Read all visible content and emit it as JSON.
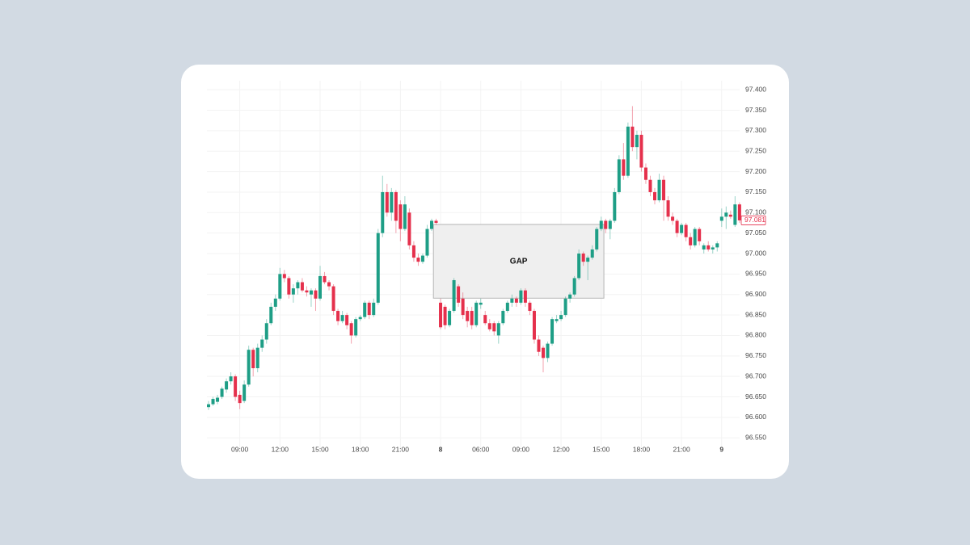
{
  "chart_data": {
    "type": "candlestick",
    "categories": [
      null,
      null,
      null,
      null,
      null,
      null,
      null,
      "09:00",
      null,
      null,
      null,
      null,
      null,
      null,
      null,
      null,
      "12:00",
      null,
      null,
      null,
      null,
      null,
      null,
      null,
      null,
      "15:00",
      null,
      null,
      null,
      null,
      null,
      null,
      null,
      null,
      "18:00",
      null,
      null,
      null,
      null,
      null,
      null,
      null,
      null,
      "21:00",
      null,
      null,
      null,
      null,
      null,
      null,
      null,
      null,
      "8",
      null,
      null,
      null,
      null,
      null,
      null,
      null,
      null,
      "06:00",
      null,
      null,
      null,
      null,
      null,
      null,
      null,
      null,
      "09:00",
      null,
      null,
      null,
      null,
      null,
      null,
      null,
      null,
      "12:00",
      null,
      null,
      null,
      null,
      null,
      null,
      null,
      null,
      "15:00",
      null,
      null,
      null,
      null,
      null,
      null,
      null,
      null,
      "18:00",
      null,
      null,
      null,
      null,
      null,
      null,
      null,
      null,
      "21:00",
      null,
      null,
      null,
      null,
      null,
      null,
      null,
      null,
      "9",
      null,
      null,
      null,
      null
    ],
    "open": [
      96.625,
      96.632,
      96.638,
      96.65,
      96.668,
      96.688,
      96.7,
      96.655,
      96.64,
      96.68,
      96.765,
      96.72,
      96.77,
      96.79,
      96.83,
      96.87,
      96.89,
      96.95,
      96.94,
      96.9,
      96.915,
      96.93,
      96.91,
      96.9,
      96.91,
      96.89,
      96.945,
      96.93,
      96.92,
      96.86,
      96.835,
      96.85,
      96.83,
      96.8,
      96.84,
      96.845,
      96.88,
      96.85,
      96.88,
      97.05,
      97.15,
      97.1,
      97.15,
      97.12,
      97.06,
      97.1,
      97.02,
      96.99,
      96.98,
      96.995,
      97.06,
      97.08,
      96.88,
      96.87,
      96.825,
      96.86,
      96.92,
      96.89,
      96.86,
      96.86,
      96.825,
      96.875,
      96.85,
      96.83,
      96.83,
      96.8,
      96.83,
      96.86,
      96.88,
      96.89,
      96.88,
      96.91,
      96.88,
      96.86,
      96.79,
      96.77,
      96.745,
      96.78,
      96.835,
      96.84,
      96.85,
      96.89,
      96.9,
      96.94,
      97.0,
      96.98,
      96.99,
      97.01,
      97.06,
      97.08,
      97.06,
      97.08,
      97.15,
      97.23,
      97.19,
      97.31,
      97.26,
      97.29,
      97.21,
      97.18,
      97.15,
      97.13,
      97.18,
      97.13,
      97.09,
      97.08,
      97.05,
      97.07,
      97.04,
      97.02,
      97.06,
      97.01,
      97.02,
      97.01,
      97.015,
      97.08,
      97.09,
      97.095,
      97.07,
      97.12
    ],
    "high": [
      96.64,
      96.65,
      96.655,
      96.675,
      96.695,
      96.71,
      96.705,
      96.665,
      96.69,
      96.775,
      96.77,
      96.78,
      96.8,
      96.84,
      96.88,
      96.9,
      96.965,
      96.96,
      96.945,
      96.925,
      96.935,
      96.94,
      96.92,
      96.915,
      96.915,
      96.97,
      96.955,
      96.935,
      96.925,
      96.865,
      96.86,
      96.855,
      96.835,
      96.845,
      96.85,
      96.885,
      96.885,
      96.89,
      97.06,
      97.19,
      97.17,
      97.16,
      97.155,
      97.13,
      97.14,
      97.11,
      97.03,
      97.0,
      97.0,
      97.07,
      97.085,
      97.085,
      96.89,
      96.875,
      96.865,
      96.94,
      96.925,
      96.905,
      96.87,
      96.87,
      96.885,
      96.89,
      96.86,
      96.84,
      96.835,
      96.835,
      96.865,
      96.885,
      96.9,
      96.895,
      96.915,
      96.915,
      96.885,
      96.865,
      96.8,
      96.775,
      96.785,
      96.845,
      96.85,
      96.86,
      96.895,
      96.905,
      96.945,
      97.01,
      97.005,
      96.995,
      97.02,
      97.065,
      97.09,
      97.085,
      97.085,
      97.16,
      97.24,
      97.27,
      97.32,
      97.36,
      97.3,
      97.3,
      97.22,
      97.19,
      97.16,
      97.195,
      97.19,
      97.14,
      97.1,
      97.085,
      97.075,
      97.075,
      97.05,
      97.065,
      97.065,
      97.025,
      97.03,
      97.02,
      97.03,
      97.11,
      97.115,
      97.105,
      97.14,
      97.125
    ],
    "low": [
      96.618,
      96.628,
      96.632,
      96.645,
      96.66,
      96.68,
      96.64,
      96.62,
      96.635,
      96.675,
      96.7,
      96.71,
      96.76,
      96.78,
      96.825,
      96.86,
      96.885,
      96.93,
      96.89,
      96.88,
      96.9,
      96.905,
      96.895,
      96.87,
      96.86,
      96.885,
      96.925,
      96.91,
      96.85,
      96.825,
      96.83,
      96.815,
      96.78,
      96.795,
      96.835,
      96.84,
      96.84,
      96.845,
      96.875,
      97.04,
      97.09,
      97.08,
      97.05,
      97.03,
      97.055,
      97.01,
      96.98,
      96.97,
      96.975,
      96.99,
      97.055,
      97.07,
      96.815,
      96.815,
      96.82,
      96.855,
      96.87,
      96.84,
      96.82,
      96.815,
      96.82,
      96.865,
      96.825,
      96.81,
      96.8,
      96.78,
      96.825,
      96.855,
      96.87,
      96.87,
      96.875,
      96.87,
      96.85,
      96.78,
      96.75,
      96.71,
      96.735,
      96.775,
      96.83,
      96.835,
      96.845,
      96.88,
      96.895,
      96.935,
      96.97,
      96.935,
      96.985,
      97.005,
      97.055,
      97.05,
      97.035,
      97.075,
      97.145,
      97.18,
      97.185,
      97.25,
      97.23,
      97.2,
      97.17,
      97.14,
      97.12,
      97.125,
      97.08,
      97.08,
      97.07,
      97.04,
      97.045,
      97.03,
      97.01,
      97.015,
      97.02,
      97.0,
      97.005,
      97.0,
      97.005,
      97.065,
      97.06,
      97.085,
      97.065,
      97.075
    ],
    "close": [
      96.632,
      96.645,
      96.648,
      96.67,
      96.688,
      96.7,
      96.65,
      96.635,
      96.68,
      96.765,
      96.72,
      96.77,
      96.79,
      96.83,
      96.87,
      96.89,
      96.95,
      96.94,
      96.9,
      96.915,
      96.93,
      96.91,
      96.905,
      96.91,
      96.89,
      96.945,
      96.93,
      96.92,
      96.86,
      96.835,
      96.85,
      96.825,
      96.8,
      96.84,
      96.845,
      96.88,
      96.85,
      96.88,
      97.05,
      97.15,
      97.1,
      97.15,
      97.08,
      97.06,
      97.12,
      97.02,
      96.99,
      96.98,
      96.995,
      97.06,
      97.08,
      97.075,
      96.82,
      96.825,
      96.86,
      96.935,
      96.88,
      96.85,
      96.835,
      96.825,
      96.88,
      96.88,
      96.83,
      96.815,
      96.81,
      96.83,
      96.86,
      96.88,
      96.89,
      96.88,
      96.91,
      96.88,
      96.86,
      96.79,
      96.76,
      96.745,
      96.78,
      96.84,
      96.84,
      96.85,
      96.89,
      96.9,
      96.94,
      97.0,
      96.98,
      96.99,
      97.01,
      97.06,
      97.08,
      97.06,
      97.08,
      97.15,
      97.23,
      97.19,
      97.31,
      97.26,
      97.29,
      97.21,
      97.18,
      97.15,
      97.13,
      97.18,
      97.13,
      97.09,
      97.08,
      97.05,
      97.07,
      97.04,
      97.02,
      97.06,
      97.03,
      97.02,
      97.01,
      97.015,
      97.025,
      97.09,
      97.1,
      97.09,
      97.12,
      97.081
    ],
    "up_color": "#1e9e86",
    "down_color": "#e5304c",
    "ylim": [
      96.515,
      97.422
    ],
    "yticks": [
      {
        "value": 96.55,
        "label": "96.550"
      },
      {
        "value": 96.6,
        "label": "96.600"
      },
      {
        "value": 96.65,
        "label": "96.650"
      },
      {
        "value": 96.7,
        "label": "96.700"
      },
      {
        "value": 96.75,
        "label": "96.750"
      },
      {
        "value": 96.8,
        "label": "96.800"
      },
      {
        "value": 96.85,
        "label": "96.850"
      },
      {
        "value": 96.9,
        "label": "96.900"
      },
      {
        "value": 96.95,
        "label": "96.950"
      },
      {
        "value": 97,
        "label": "97.000"
      },
      {
        "value": 97.05,
        "label": "97.050"
      },
      {
        "value": 97.1,
        "label": "97.100"
      },
      {
        "value": 97.15,
        "label": "97.150"
      },
      {
        "value": 97.2,
        "label": "97.200"
      },
      {
        "value": 97.25,
        "label": "97.250"
      },
      {
        "value": 97.3,
        "label": "97.300"
      },
      {
        "value": 97.35,
        "label": "97.350"
      },
      {
        "value": 97.4,
        "label": "97.400"
      }
    ],
    "grid": true,
    "gap": {
      "label": "GAP",
      "top": 97.071,
      "bottom": 96.891
    },
    "last_price": 97.081
  }
}
